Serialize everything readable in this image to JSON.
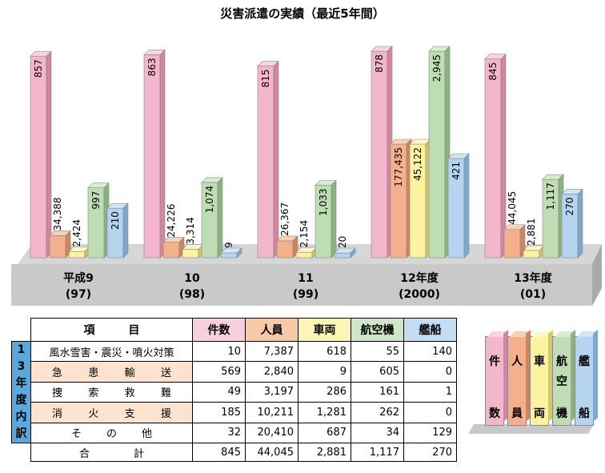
{
  "chart_data": {
    "type": "bar",
    "title": "災害派遣の実績（最近5年間）",
    "categories": [
      {
        "line1": "平成9",
        "line2": "(97)"
      },
      {
        "line1": "10",
        "line2": "(98)"
      },
      {
        "line1": "11",
        "line2": "(99)"
      },
      {
        "line1": "12年度",
        "line2": "(2000)"
      },
      {
        "line1": "13年度",
        "line2": "(01)"
      }
    ],
    "series": [
      {
        "key": "cases",
        "values": [
          857,
          863,
          815,
          878,
          845
        ],
        "labels": [
          "857",
          "863",
          "815",
          "878",
          "845"
        ],
        "color": "#f4b6cc",
        "side": "#d3869f",
        "top": "#f9d4e2"
      },
      {
        "key": "personnel",
        "values": [
          34388,
          24226,
          26367,
          177435,
          44045
        ],
        "labels": [
          "34,388",
          "24,226",
          "26,367",
          "177,435",
          "44,045"
        ],
        "color": "#f4b08c",
        "side": "#cf8460",
        "top": "#f9cfb5"
      },
      {
        "key": "vehicles",
        "values": [
          2424,
          3314,
          2154,
          45122,
          2881
        ],
        "labels": [
          "2,424",
          "3,314",
          "2,154",
          "45,122",
          "2,881"
        ],
        "color": "#fbf3a0",
        "side": "#d1c76c",
        "top": "#fdf8c8"
      },
      {
        "key": "aircraft",
        "values": [
          997,
          1074,
          1033,
          2945,
          1117
        ],
        "labels": [
          "997",
          "1,074",
          "1,033",
          "2,945",
          "1,117"
        ],
        "color": "#bfddb4",
        "side": "#8db281",
        "top": "#d9ecd1"
      },
      {
        "key": "ships",
        "values": [
          210,
          9,
          20,
          421,
          270
        ],
        "labels": [
          "210",
          "9",
          "20",
          "421",
          "270"
        ],
        "color": "#b4d4f0",
        "side": "#7ea8cc",
        "top": "#d2e5f6"
      }
    ]
  },
  "table": {
    "side_label": [
      "1",
      "3",
      "年",
      "度",
      "内",
      "訳"
    ],
    "header": {
      "item": "項　　　目",
      "cases": "件数",
      "personnel": "人員",
      "vehicles": "車両",
      "aircraft": "航空機",
      "ships": "艦船"
    },
    "rows": [
      {
        "item": "風水雪害・震災・噴火対策",
        "cases": "10",
        "personnel": "7,387",
        "vehicles": "618",
        "aircraft": "55",
        "ships": "140"
      },
      {
        "item": "急患輸送",
        "cases": "569",
        "personnel": "2,840",
        "vehicles": "9",
        "aircraft": "605",
        "ships": "0"
      },
      {
        "item": "捜索救難",
        "cases": "49",
        "personnel": "3,197",
        "vehicles": "286",
        "aircraft": "161",
        "ships": "1"
      },
      {
        "item": "消火支援",
        "cases": "185",
        "personnel": "10,211",
        "vehicles": "1,281",
        "aircraft": "262",
        "ships": "0"
      },
      {
        "item": "その他",
        "cases": "32",
        "personnel": "20,410",
        "vehicles": "687",
        "aircraft": "34",
        "ships": "129"
      }
    ],
    "total": {
      "item": "合計",
      "cases": "845",
      "personnel": "44,045",
      "vehicles": "2,881",
      "aircraft": "1,117",
      "ships": "270"
    }
  },
  "legend": [
    {
      "top": "件",
      "mid": "",
      "bottom": "数"
    },
    {
      "top": "人",
      "mid": "",
      "bottom": "員"
    },
    {
      "top": "車",
      "mid": "",
      "bottom": "両"
    },
    {
      "top": "航",
      "mid": "空",
      "bottom": "機"
    },
    {
      "top": "艦",
      "mid": "",
      "bottom": "船"
    }
  ]
}
